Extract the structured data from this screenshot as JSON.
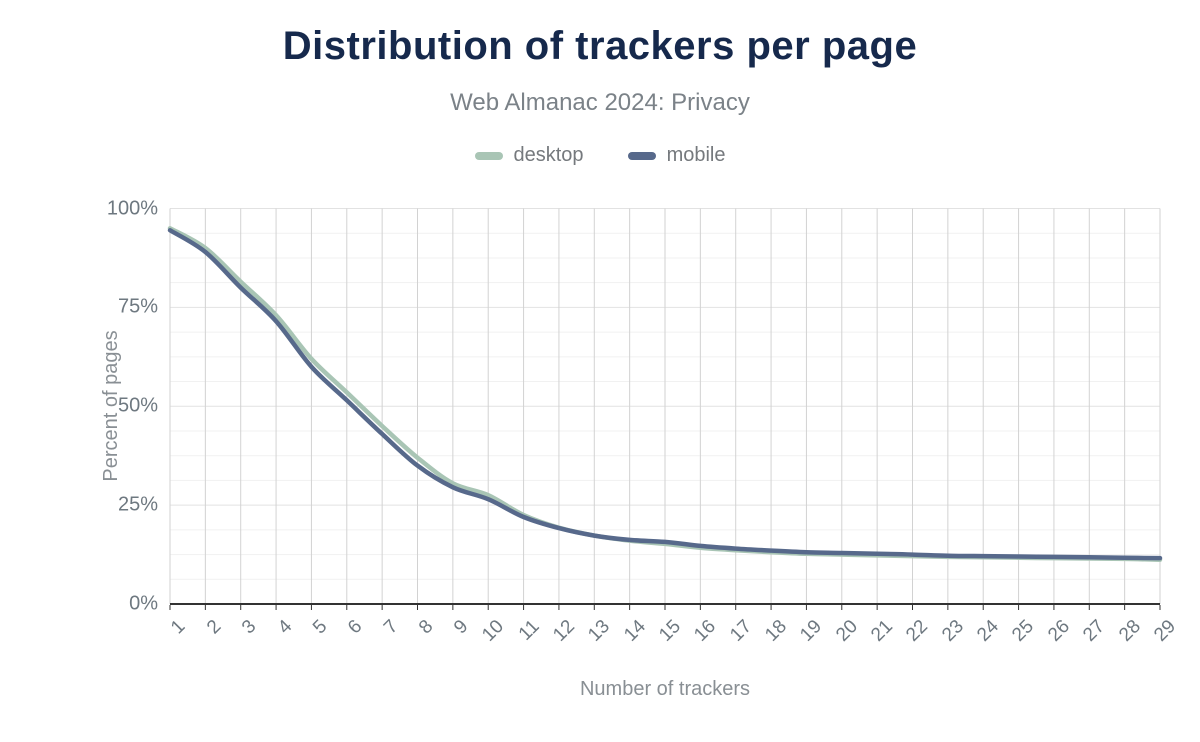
{
  "header": {
    "title": "Distribution of trackers per page",
    "subtitle": "Web Almanac 2024: Privacy"
  },
  "legend": [
    {
      "label": "desktop",
      "color": "#a9c5b5"
    },
    {
      "label": "mobile",
      "color": "#57698b"
    }
  ],
  "axes": {
    "y_title": "Percent of pages",
    "x_title": "Number of trackers",
    "y_tick_labels": [
      "100%",
      "75%",
      "50%",
      "25%",
      "0%"
    ],
    "y_tick_values": [
      100,
      75,
      50,
      25,
      0
    ]
  },
  "chart_data": {
    "type": "line",
    "title": "Distribution of trackers per page",
    "subtitle": "Web Almanac 2024: Privacy",
    "xlabel": "Number of trackers",
    "ylabel": "Percent of pages",
    "categories": [
      1,
      2,
      3,
      4,
      5,
      6,
      7,
      8,
      9,
      10,
      11,
      12,
      13,
      14,
      15,
      16,
      17,
      18,
      19,
      20,
      21,
      22,
      23,
      24,
      25,
      26,
      27,
      28,
      29
    ],
    "series": [
      {
        "name": "desktop",
        "color": "#a9c5b5",
        "values": [
          95,
          90,
          81.5,
          73,
          62,
          53.5,
          45,
          37,
          30.5,
          27.5,
          22.5,
          19.3,
          17.3,
          16.0,
          15.2,
          14.2,
          13.6,
          13.1,
          12.7,
          12.5,
          12.3,
          12.1,
          11.9,
          11.8,
          11.7,
          11.6,
          11.5,
          11.4,
          11.2
        ]
      },
      {
        "name": "mobile",
        "color": "#57698b",
        "values": [
          94.5,
          89,
          80,
          71.5,
          60,
          51.5,
          43,
          35,
          29.5,
          26.5,
          22,
          19.2,
          17.3,
          16.2,
          15.7,
          14.7,
          14.0,
          13.5,
          13.1,
          12.9,
          12.7,
          12.5,
          12.2,
          12.1,
          12.0,
          11.9,
          11.8,
          11.7,
          11.6
        ]
      }
    ],
    "ylim": [
      0,
      100
    ],
    "y_major_step": 25,
    "y_minor_step": 6.25,
    "grid": "vertical major per category; horizontal major every 25% with minors every 6.25%",
    "legend_position": "top center"
  },
  "style_colors": {
    "title": "#16294c",
    "subtitle": "#7b8288",
    "axis_line": "#333333",
    "grid_major_v": "#d2d2d2",
    "grid_major_h": "#e2e2e2",
    "grid_minor_h": "#f1f1f1",
    "background": "#ffffff"
  }
}
